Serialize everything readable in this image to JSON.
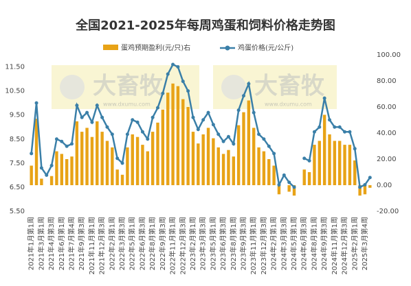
{
  "chart_data": {
    "type": "bar-line",
    "title": "全国2021-2025年每周鸡蛋和饲料价格走势图",
    "watermark": "大畜牧",
    "watermark_url": "www.dxumu.com",
    "categories": [
      "2021年1月第1周",
      null,
      "2021年3月第1周",
      null,
      "2021年4月第3周",
      null,
      "2021年6月第1周",
      null,
      "2021年7月第4周",
      null,
      "2021年9月第3周",
      null,
      "2021年11月第1周",
      null,
      "2021年12月第3周",
      null,
      "2022年2月第1周",
      null,
      "2022年3月第3周",
      null,
      "2022年5月第1周",
      null,
      "2022年6月第3周",
      null,
      "2022年8月第1周",
      null,
      "2022年9月第3周",
      null,
      "2022年11月第1周",
      null,
      "2022年12月第3周",
      null,
      "2023年2月第1周",
      null,
      "2023年3月第3周",
      null,
      "2023年5月第1周",
      null,
      "2023年6月第3周",
      null,
      "2023年8月第1周",
      null,
      "2023年9月第3周",
      null,
      "2023年11月第1周",
      null,
      "2023年12月第3周",
      null,
      "2024年2月第1周",
      null,
      "2024年3月第3周",
      null,
      "2024年5月第1周",
      null,
      "2024年6月第3周",
      null,
      "2024年8月第1周",
      null,
      "2024年9月第3周",
      null,
      "2024年11月第1周",
      null,
      "2024年12月第3周",
      null,
      "2025年2月第1周",
      null,
      "2025年3月第4周",
      null
    ],
    "series": [
      {
        "name": "蛋鸡预期盈利(元/只)右",
        "color": "#e8a317",
        "type": "bar",
        "axis": "y2",
        "values": [
          15,
          51,
          5,
          0,
          7,
          26,
          24,
          20,
          22,
          49,
          41,
          44,
          37,
          49,
          41,
          34,
          29,
          12,
          8,
          29,
          39,
          37,
          31,
          26,
          41,
          48,
          58,
          71,
          78,
          76,
          66,
          60,
          41,
          32,
          39,
          44,
          36,
          29,
          24,
          27,
          22,
          46,
          56,
          65,
          44,
          29,
          26,
          20,
          15,
          -7,
          0,
          -5,
          -8,
          null,
          12,
          10,
          31,
          34,
          54,
          39,
          34,
          34,
          31,
          31,
          19,
          -8,
          -7,
          -2
        ]
      },
      {
        "name": "鸡蛋价格(元/公斤)",
        "color": "#3a7fa8",
        "type": "line",
        "values": [
          7.9,
          10.0,
          7.3,
          7.0,
          7.4,
          8.5,
          8.4,
          8.2,
          8.3,
          9.9,
          9.4,
          9.6,
          9.2,
          9.9,
          9.4,
          9.0,
          8.7,
          7.7,
          7.5,
          8.7,
          9.3,
          9.2,
          8.8,
          8.5,
          9.4,
          9.8,
          10.4,
          11.2,
          11.6,
          11.5,
          10.9,
          10.5,
          9.4,
          8.9,
          9.3,
          9.6,
          9.1,
          8.7,
          8.4,
          8.6,
          8.3,
          9.7,
          10.3,
          10.8,
          9.6,
          8.7,
          8.5,
          8.2,
          7.9,
          6.6,
          7.0,
          6.7,
          6.5,
          null,
          7.7,
          7.6,
          8.8,
          9.0,
          10.2,
          9.3,
          9.0,
          9.0,
          8.8,
          8.8,
          8.1,
          6.5,
          6.6,
          6.9
        ]
      }
    ],
    "ylim": [
      5.5,
      12
    ],
    "yticks": [
      {
        "value": 5.5,
        "label": "5.50"
      },
      {
        "value": 6.5,
        "label": "6.50"
      },
      {
        "value": 7.5,
        "label": "7.50"
      },
      {
        "value": 8.5,
        "label": "8.50"
      },
      {
        "value": 9.5,
        "label": "9.50"
      },
      {
        "value": 10.5,
        "label": "10.50"
      },
      {
        "value": 11.5,
        "label": "11.50"
      }
    ],
    "y2lim": [
      -20,
      100
    ],
    "y2ticks": [
      {
        "value": -20,
        "label": "-20.00"
      },
      {
        "value": 0,
        "label": "0.00"
      },
      {
        "value": 20,
        "label": "20.00"
      },
      {
        "value": 40,
        "label": "40.00"
      },
      {
        "value": 60,
        "label": "60.00"
      },
      {
        "value": 80,
        "label": "80.00"
      },
      {
        "value": 100,
        "label": "100.00"
      }
    ],
    "legend": "top"
  }
}
